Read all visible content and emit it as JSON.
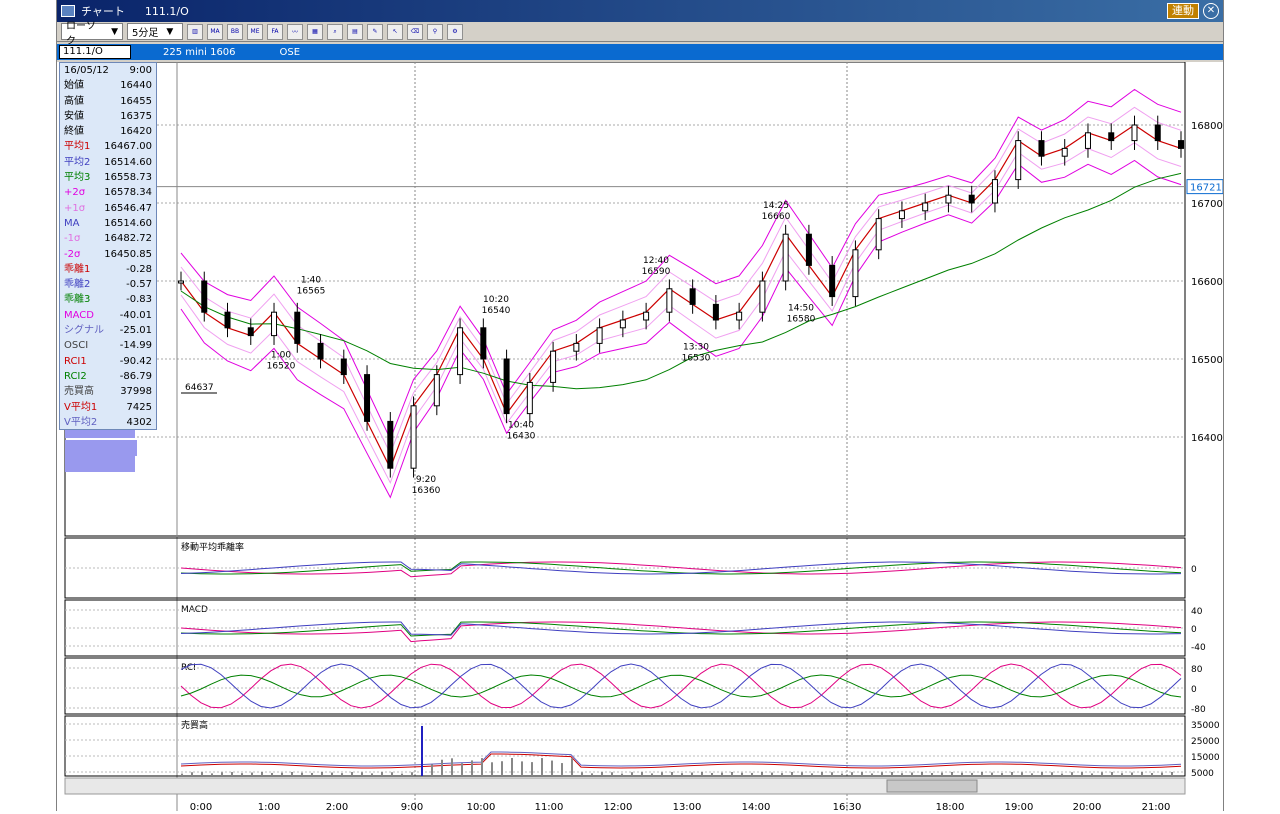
{
  "window": {
    "title": "チャート",
    "symbol": "111.1/O",
    "linked_label": "連動"
  },
  "toolbar": {
    "candle_type": "ローソク",
    "interval": "5分足",
    "icons": [
      "bar-chart-icon",
      "ma-icon",
      "bb-icon",
      "mme-icon",
      "fa-icon",
      "line-icon",
      "pattern-icon",
      "zoom-icon",
      "table-icon",
      "pencil-icon",
      "cursor-icon",
      "eraser-icon",
      "search-icon",
      "settings-icon"
    ]
  },
  "infobar": {
    "code": "111.1/O",
    "name": "225 mini 1606",
    "exchange": "OSE"
  },
  "data_panel": [
    {
      "label": "16/05/12",
      "value": "9:00",
      "color": "#000000"
    },
    {
      "label": "始値",
      "value": "16440",
      "color": "#000000"
    },
    {
      "label": "高値",
      "value": "16455",
      "color": "#000000"
    },
    {
      "label": "安値",
      "value": "16375",
      "color": "#000000"
    },
    {
      "label": "終値",
      "value": "16420",
      "color": "#000000"
    },
    {
      "label": "平均1",
      "value": "16467.00",
      "color": "#cc0000"
    },
    {
      "label": "平均2",
      "value": "16514.60",
      "color": "#4040c0"
    },
    {
      "label": "平均3",
      "value": "16558.73",
      "color": "#008000"
    },
    {
      "label": "+2σ",
      "value": "16578.34",
      "color": "#e000e0"
    },
    {
      "label": "+1σ",
      "value": "16546.47",
      "color": "#e070e0"
    },
    {
      "label": "MA",
      "value": "16514.60",
      "color": "#4040c0"
    },
    {
      "label": "-1σ",
      "value": "16482.72",
      "color": "#e070e0"
    },
    {
      "label": "-2σ",
      "value": "16450.85",
      "color": "#e000e0"
    },
    {
      "label": "乖離1",
      "value": "-0.28",
      "color": "#cc0000"
    },
    {
      "label": "乖離2",
      "value": "-0.57",
      "color": "#4040c0"
    },
    {
      "label": "乖離3",
      "value": "-0.83",
      "color": "#008000"
    },
    {
      "label": "MACD",
      "value": "-40.01",
      "color": "#e000e0"
    },
    {
      "label": "シグナル",
      "value": "-25.01",
      "color": "#6060c0"
    },
    {
      "label": "OSCI",
      "value": "-14.99",
      "color": "#404040"
    },
    {
      "label": "RCI1",
      "value": "-90.42",
      "color": "#cc0000"
    },
    {
      "label": "RCI2",
      "value": "-86.79",
      "color": "#008000"
    },
    {
      "label": "売買高",
      "value": "37998",
      "color": "#404040"
    },
    {
      "label": "V平均1",
      "value": "7425",
      "color": "#cc0000"
    },
    {
      "label": "V平均2",
      "value": "4302",
      "color": "#6060c0"
    }
  ],
  "chart_data": {
    "type": "candlestick",
    "price_axis": {
      "ticks": [
        "16800",
        "16700",
        "16600",
        "16500",
        "16400"
      ],
      "current_price": "16721"
    },
    "time_axis": [
      "0:00",
      "1:00",
      "2:00",
      "9:00",
      "10:00",
      "11:00",
      "12:00",
      "13:00",
      "14:00",
      "16:30",
      "18:00",
      "19:00",
      "20:00",
      "21:00"
    ],
    "annotations": [
      {
        "time": "1:00",
        "price": "16520"
      },
      {
        "time": "1:40",
        "price": "16565"
      },
      {
        "time": "9:20",
        "price": "16360"
      },
      {
        "time": "10:20",
        "price": "16540"
      },
      {
        "time": "10:40",
        "price": "16430"
      },
      {
        "time": "12:40",
        "price": "16590"
      },
      {
        "time": "13:30",
        "price": "16530"
      },
      {
        "time": "14:25",
        "price": "16660"
      },
      {
        "time": "14:50",
        "price": "16580"
      }
    ],
    "volume_profile_label": "64637",
    "close_path": [
      16600,
      16560,
      16540,
      16530,
      16560,
      16520,
      16500,
      16480,
      16420,
      16360,
      16440,
      16480,
      16540,
      16500,
      16430,
      16470,
      16510,
      16520,
      16540,
      16550,
      16560,
      16590,
      16570,
      16550,
      16560,
      16600,
      16660,
      16620,
      16580,
      16640,
      16680,
      16690,
      16700,
      16710,
      16700,
      16730,
      16780,
      16760,
      16770,
      16790,
      16780,
      16800,
      16780,
      16770
    ],
    "panels": [
      {
        "label": "移動平均乖離率",
        "ticks": [
          "0"
        ]
      },
      {
        "label": "MACD",
        "ticks": [
          "40",
          "0",
          "-40"
        ]
      },
      {
        "label": "RCI",
        "ticks": [
          "80",
          "0",
          "-80"
        ]
      },
      {
        "label": "売買高",
        "ticks": [
          "35000",
          "25000",
          "15000",
          "5000"
        ]
      }
    ]
  }
}
